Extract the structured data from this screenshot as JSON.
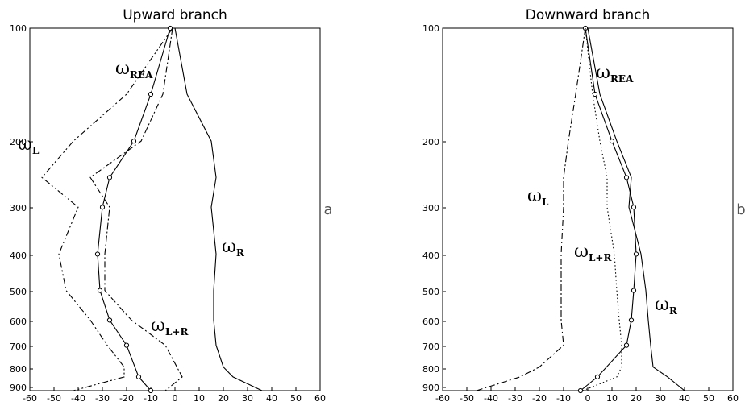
{
  "chart_data": [
    {
      "type": "line",
      "title": "Upward branch",
      "panel_label": "a",
      "xlabel": "",
      "ylabel": "",
      "xlim": [
        -60,
        60
      ],
      "x_ticks": [
        "-60",
        "-50",
        "-40",
        "-30",
        "-20",
        "-10",
        "0",
        "10",
        "20",
        "30",
        "40",
        "50",
        "60"
      ],
      "y_ticks": [
        "100",
        "200",
        "300",
        "400",
        "500",
        "600",
        "700",
        "800",
        "900"
      ],
      "y_scale": "pressure (log-like, inverted)",
      "grid": false,
      "series": [
        {
          "key": "R",
          "style": "solid",
          "markers": false,
          "label": {
            "symbol": "ω",
            "subscript": "R"
          },
          "points": [
            [
              0,
              100
            ],
            [
              5,
              150
            ],
            [
              15,
              200
            ],
            [
              17,
              250
            ],
            [
              15,
              300
            ],
            [
              17,
              400
            ],
            [
              16,
              500
            ],
            [
              16,
              600
            ],
            [
              17,
              700
            ],
            [
              20,
              800
            ],
            [
              24,
              850
            ],
            [
              36,
              925
            ]
          ]
        },
        {
          "key": "REA",
          "style": "solid",
          "markers": true,
          "label": {
            "symbol": "ω",
            "subscript": "REA"
          },
          "points": [
            [
              -2,
              100
            ],
            [
              -10,
              150
            ],
            [
              -17,
              200
            ],
            [
              -27,
              250
            ],
            [
              -30,
              300
            ],
            [
              -32,
              400
            ],
            [
              -31,
              500
            ],
            [
              -27,
              600
            ],
            [
              -20,
              700
            ],
            [
              -15,
              850
            ],
            [
              -10,
              925
            ]
          ]
        },
        {
          "key": "L",
          "style": "dashdotdot",
          "markers": false,
          "label": {
            "symbol": "ω",
            "subscript": "L"
          },
          "points": [
            [
              -1,
              100
            ],
            [
              -20,
              150
            ],
            [
              -42,
              200
            ],
            [
              -55,
              250
            ],
            [
              -40,
              300
            ],
            [
              -48,
              400
            ],
            [
              -45,
              500
            ],
            [
              -35,
              600
            ],
            [
              -28,
              700
            ],
            [
              -21,
              800
            ],
            [
              -21,
              850
            ],
            [
              -42,
              925
            ]
          ]
        },
        {
          "key": "L+R",
          "style": "dashdot",
          "markers": false,
          "label": {
            "symbol": "ω",
            "subscript": "L+R"
          },
          "points": [
            [
              -1,
              100
            ],
            [
              -5,
              150
            ],
            [
              -14,
              200
            ],
            [
              -35,
              250
            ],
            [
              -27,
              300
            ],
            [
              -29,
              400
            ],
            [
              -29,
              500
            ],
            [
              -18,
              600
            ],
            [
              -4,
              700
            ],
            [
              3,
              850
            ],
            [
              -4,
              925
            ]
          ]
        }
      ]
    },
    {
      "type": "line",
      "title": "Downward branch",
      "panel_label": "b",
      "xlabel": "",
      "ylabel": "",
      "xlim": [
        -60,
        60
      ],
      "x_ticks": [
        "-60",
        "-50",
        "-40",
        "-30",
        "-20",
        "-10",
        "0",
        "10",
        "20",
        "30",
        "40",
        "50",
        "60"
      ],
      "y_ticks": [
        "100",
        "200",
        "300",
        "400",
        "500",
        "600",
        "700",
        "800",
        "900"
      ],
      "y_scale": "pressure (log-like, inverted)",
      "grid": false,
      "series": [
        {
          "key": "R",
          "style": "solid",
          "markers": false,
          "label": {
            "symbol": "ω",
            "subscript": "R"
          },
          "points": [
            [
              0,
              100
            ],
            [
              5,
              150
            ],
            [
              12,
              200
            ],
            [
              18,
              250
            ],
            [
              17,
              300
            ],
            [
              22,
              400
            ],
            [
              24,
              500
            ],
            [
              25,
              600
            ],
            [
              26,
              700
            ],
            [
              27,
              800
            ],
            [
              33,
              850
            ],
            [
              40,
              925
            ]
          ]
        },
        {
          "key": "REA",
          "style": "solid",
          "markers": true,
          "label": {
            "symbol": "ω",
            "subscript": "REA"
          },
          "points": [
            [
              -1,
              100
            ],
            [
              3,
              150
            ],
            [
              10,
              200
            ],
            [
              16,
              250
            ],
            [
              19,
              300
            ],
            [
              20,
              400
            ],
            [
              19,
              500
            ],
            [
              18,
              600
            ],
            [
              16,
              700
            ],
            [
              4,
              850
            ],
            [
              -3,
              925
            ]
          ]
        },
        {
          "key": "L",
          "style": "dashdot",
          "markers": false,
          "label": {
            "symbol": "ω",
            "subscript": "L"
          },
          "points": [
            [
              -1,
              100
            ],
            [
              -5,
              150
            ],
            [
              -8,
              200
            ],
            [
              -10,
              250
            ],
            [
              -10,
              300
            ],
            [
              -11,
              400
            ],
            [
              -11,
              500
            ],
            [
              -11,
              600
            ],
            [
              -10,
              700
            ],
            [
              -20,
              800
            ],
            [
              -28,
              850
            ],
            [
              -46,
              925
            ]
          ]
        },
        {
          "key": "L+R",
          "style": "dotted",
          "markers": false,
          "label": {
            "symbol": "ω",
            "subscript": "L+R"
          },
          "points": [
            [
              -1,
              100
            ],
            [
              2,
              150
            ],
            [
              5,
              200
            ],
            [
              8,
              250
            ],
            [
              8,
              300
            ],
            [
              11,
              400
            ],
            [
              12,
              500
            ],
            [
              13,
              600
            ],
            [
              14,
              700
            ],
            [
              14,
              800
            ],
            [
              12,
              850
            ],
            [
              -2,
              925
            ]
          ]
        }
      ]
    }
  ]
}
